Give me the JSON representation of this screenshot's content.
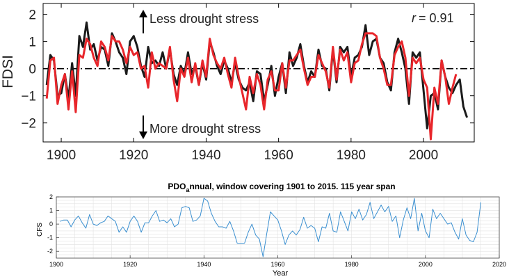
{
  "chart_data": [
    {
      "type": "line",
      "title": "",
      "xlabel": "",
      "ylabel": "FDSI",
      "xlim": [
        1895,
        2014
      ],
      "ylim": [
        -2.7,
        2.4
      ],
      "xticks": [
        1900,
        1920,
        1940,
        1960,
        1980,
        2000
      ],
      "yticks": [
        -2,
        -1,
        0,
        1,
        2
      ],
      "grid": false,
      "annotations": {
        "correlation_symbol": "r",
        "correlation_value": "= 0.91",
        "less_stress": "Less drought stress",
        "more_stress": "More drought stress"
      },
      "series": [
        {
          "color": "#1a1a1a",
          "x": [
            1896,
            1897,
            1898,
            1899,
            1900,
            1901,
            1902,
            1903,
            1904,
            1905,
            1906,
            1907,
            1908,
            1909,
            1910,
            1911,
            1912,
            1913,
            1914,
            1915,
            1916,
            1917,
            1918,
            1919,
            1920,
            1921,
            1922,
            1923,
            1924,
            1925,
            1926,
            1927,
            1928,
            1929,
            1930,
            1931,
            1932,
            1933,
            1934,
            1935,
            1936,
            1937,
            1938,
            1939,
            1940,
            1941,
            1942,
            1943,
            1944,
            1945,
            1946,
            1947,
            1948,
            1949,
            1950,
            1951,
            1952,
            1953,
            1954,
            1955,
            1956,
            1957,
            1958,
            1959,
            1960,
            1961,
            1962,
            1963,
            1964,
            1965,
            1966,
            1967,
            1968,
            1969,
            1970,
            1971,
            1972,
            1973,
            1974,
            1975,
            1976,
            1977,
            1978,
            1979,
            1980,
            1981,
            1982,
            1983,
            1984,
            1985,
            1986,
            1987,
            1988,
            1989,
            1990,
            1991,
            1992,
            1993,
            1994,
            1995,
            1996,
            1997,
            1998,
            1999,
            2000,
            2001,
            2002,
            2003,
            2004,
            2005,
            2006,
            2007,
            2008,
            2009,
            2010,
            2011,
            2012
          ],
          "values": [
            -0.6,
            0.5,
            0.3,
            -1.0,
            -0.9,
            -0.2,
            -1.1,
            0.2,
            -1.0,
            1.2,
            0.8,
            1.7,
            0.7,
            0.9,
            0.3,
            0.8,
            0.7,
            0.1,
            1.3,
            1.0,
            0.6,
            0.4,
            -0.2,
            1.0,
            1.2,
            0.8,
            0.1,
            -0.3,
            0.8,
            0.2,
            0.3,
            0.1,
            0.6,
            0.0,
            0.7,
            -0.2,
            -0.6,
            0.1,
            -0.2,
            0.6,
            -0.2,
            0.1,
            -0.6,
            0.2,
            -0.4,
            1.0,
            0.6,
            0.1,
            -0.2,
            0.3,
            0.0,
            -0.5,
            0.2,
            -0.4,
            -0.7,
            -0.8,
            -0.5,
            -1.2,
            -0.1,
            -0.2,
            -1.2,
            -0.6,
            0.1,
            -1.0,
            -0.3,
            0.2,
            -0.9,
            0.6,
            0.1,
            0.4,
            0.9,
            0.1,
            -0.5,
            -0.1,
            -0.3,
            0.7,
            0.1,
            0.0,
            -0.8,
            0.7,
            -0.5,
            0.8,
            0.6,
            0.8,
            -0.3,
            0.4,
            0.5,
            0.8,
            1.6,
            0.5,
            1.0,
            1.1,
            0.4,
            0.2,
            -0.5,
            -0.8,
            0.6,
            1.1,
            0.6,
            0.0,
            -1.3,
            0.6,
            0.4,
            0.6,
            -0.8,
            -2.2,
            -1.0,
            -0.9,
            -1.5,
            0.3,
            -0.3,
            -0.7,
            -0.9,
            -0.6,
            -0.4,
            -1.4,
            -1.8
          ]
        },
        {
          "color": "#e8262b",
          "x": [
            1896,
            1897,
            1898,
            1899,
            1900,
            1901,
            1902,
            1903,
            1904,
            1905,
            1906,
            1907,
            1908,
            1909,
            1910,
            1911,
            1912,
            1913,
            1914,
            1915,
            1916,
            1917,
            1918,
            1919,
            1920,
            1921,
            1922,
            1923,
            1924,
            1925,
            1926,
            1927,
            1928,
            1929,
            1930,
            1931,
            1932,
            1933,
            1934,
            1935,
            1936,
            1937,
            1938,
            1939,
            1940,
            1941,
            1942,
            1943,
            1944,
            1945,
            1946,
            1947,
            1948,
            1949,
            1950,
            1951,
            1952,
            1953,
            1954,
            1955,
            1956,
            1957,
            1958,
            1959,
            1960,
            1961,
            1962,
            1963,
            1964,
            1965,
            1966,
            1967,
            1968,
            1969,
            1970,
            1971,
            1972,
            1973,
            1974,
            1975,
            1976,
            1977,
            1978,
            1979,
            1980,
            1981,
            1982,
            1983,
            1984,
            1985,
            1986,
            1987,
            1988,
            1989,
            1990,
            1991,
            1992,
            1993,
            1994,
            1995,
            1996,
            1997,
            1998,
            1999,
            2000,
            2001,
            2002,
            2003,
            2004,
            2005,
            2006,
            2007,
            2008,
            2009
          ],
          "values": [
            -1.1,
            0.3,
            0.4,
            -1.3,
            -0.6,
            -0.2,
            -1.5,
            -0.1,
            -1.6,
            0.5,
            0.4,
            1.1,
            0.9,
            0.4,
            0.1,
            1.0,
            0.8,
            0.3,
            1.2,
            1.0,
            1.0,
            0.7,
            0.2,
            0.8,
            0.5,
            0.6,
            0.0,
            0.1,
            -0.7,
            0.6,
            0.0,
            0.2,
            0.1,
            0.0,
            0.8,
            -0.4,
            -1.2,
            0.0,
            -0.3,
            0.4,
            -0.5,
            0.2,
            -0.6,
            0.3,
            -0.3,
            1.1,
            0.5,
            0.2,
            0.0,
            0.4,
            -0.2,
            -0.7,
            0.4,
            -0.3,
            -0.9,
            -1.5,
            -0.3,
            -0.9,
            -0.2,
            -0.6,
            -1.5,
            -0.4,
            -0.1,
            -0.8,
            -0.8,
            0.2,
            -0.7,
            0.3,
            0.3,
            0.5,
            0.7,
            0.0,
            -0.6,
            -0.3,
            -0.3,
            0.5,
            0.2,
            -0.1,
            -0.7,
            0.8,
            -0.4,
            0.7,
            0.3,
            0.6,
            -0.5,
            0.2,
            0.3,
            0.9,
            1.3,
            1.3,
            1.3,
            1.2,
            0.4,
            0.0,
            -0.6,
            -0.6,
            0.5,
            0.8,
            1.0,
            0.4,
            -1.0,
            0.4,
            0.2,
            0.4,
            -0.4,
            -0.7,
            -2.6,
            -0.7,
            -1.3,
            0.3,
            -0.3,
            -1.3,
            -0.7,
            -0.2
          ]
        }
      ]
    },
    {
      "type": "line",
      "title": "PDO_annual, window covering 1901 to 2015.  115 year span",
      "title_main": "PDO",
      "title_sub": "a",
      "title_rest": "nnual, window covering 1901 to 2015.  115 year span",
      "xlabel": "Year",
      "ylabel": "CFS",
      "xlim": [
        1900,
        2020
      ],
      "ylim": [
        -2.5,
        2
      ],
      "xticks": [
        1900,
        1920,
        1940,
        1960,
        1980,
        2000,
        2020
      ],
      "yticks": [
        -2,
        -1,
        0,
        1,
        2
      ],
      "grid": true,
      "series": [
        {
          "color": "#3a8fd0",
          "x": [
            1901,
            1902,
            1903,
            1904,
            1905,
            1906,
            1907,
            1908,
            1909,
            1910,
            1911,
            1912,
            1913,
            1914,
            1915,
            1916,
            1917,
            1918,
            1919,
            1920,
            1921,
            1922,
            1923,
            1924,
            1925,
            1926,
            1927,
            1928,
            1929,
            1930,
            1931,
            1932,
            1933,
            1934,
            1935,
            1936,
            1937,
            1938,
            1939,
            1940,
            1941,
            1942,
            1943,
            1944,
            1945,
            1946,
            1947,
            1948,
            1949,
            1950,
            1951,
            1952,
            1953,
            1954,
            1955,
            1956,
            1957,
            1958,
            1959,
            1960,
            1961,
            1962,
            1963,
            1964,
            1965,
            1966,
            1967,
            1968,
            1969,
            1970,
            1971,
            1972,
            1973,
            1974,
            1975,
            1976,
            1977,
            1978,
            1979,
            1980,
            1981,
            1982,
            1983,
            1984,
            1985,
            1986,
            1987,
            1988,
            1989,
            1990,
            1991,
            1992,
            1993,
            1994,
            1995,
            1996,
            1997,
            1998,
            1999,
            2000,
            2001,
            2002,
            2003,
            2004,
            2005,
            2006,
            2007,
            2008,
            2009,
            2010,
            2011,
            2012,
            2013,
            2014,
            2015
          ],
          "values": [
            0.2,
            0.3,
            0.3,
            -0.2,
            0.3,
            0.6,
            0.1,
            -0.3,
            0.7,
            0.0,
            -0.1,
            0.1,
            0.2,
            0.6,
            0.4,
            0.2,
            -0.6,
            -0.2,
            -0.6,
            0.2,
            0.6,
            0.2,
            -0.6,
            0.1,
            0.1,
            0.6,
            1.0,
            0.2,
            0.3,
            0.1,
            0.4,
            -0.2,
            0.0,
            1.2,
            1.3,
            1.2,
            0.2,
            0.3,
            0.6,
            1.9,
            1.7,
            0.8,
            0.2,
            -0.2,
            -0.2,
            -0.3,
            0.2,
            -0.5,
            -1.4,
            -1.4,
            -1.4,
            -0.6,
            0.0,
            -0.8,
            -1.1,
            -2.4,
            -0.7,
            0.9,
            0.6,
            0.3,
            -0.5,
            -1.5,
            -0.8,
            -0.5,
            -0.8,
            -0.4,
            0.5,
            -0.3,
            -0.1,
            -0.3,
            -1.3,
            -0.2,
            -0.3,
            0.8,
            -0.5,
            -0.6,
            0.9,
            0.2,
            -0.5,
            0.9,
            0.4,
            1.1,
            0.3,
            0.7,
            1.6,
            0.4,
            0.9,
            1.4,
            0.9,
            1.3,
            0.2,
            0.6,
            -1.0,
            0.3,
            1.2,
            0.4,
            1.9,
            -0.5,
            0.8,
            -0.5,
            -1.0,
            1.1,
            0.4,
            0.8,
            0.4,
            0.0,
            0.1,
            -0.6,
            -1.1,
            0.4,
            -0.8,
            -1.2,
            -1.3,
            -0.6,
            1.6
          ]
        }
      ]
    }
  ]
}
